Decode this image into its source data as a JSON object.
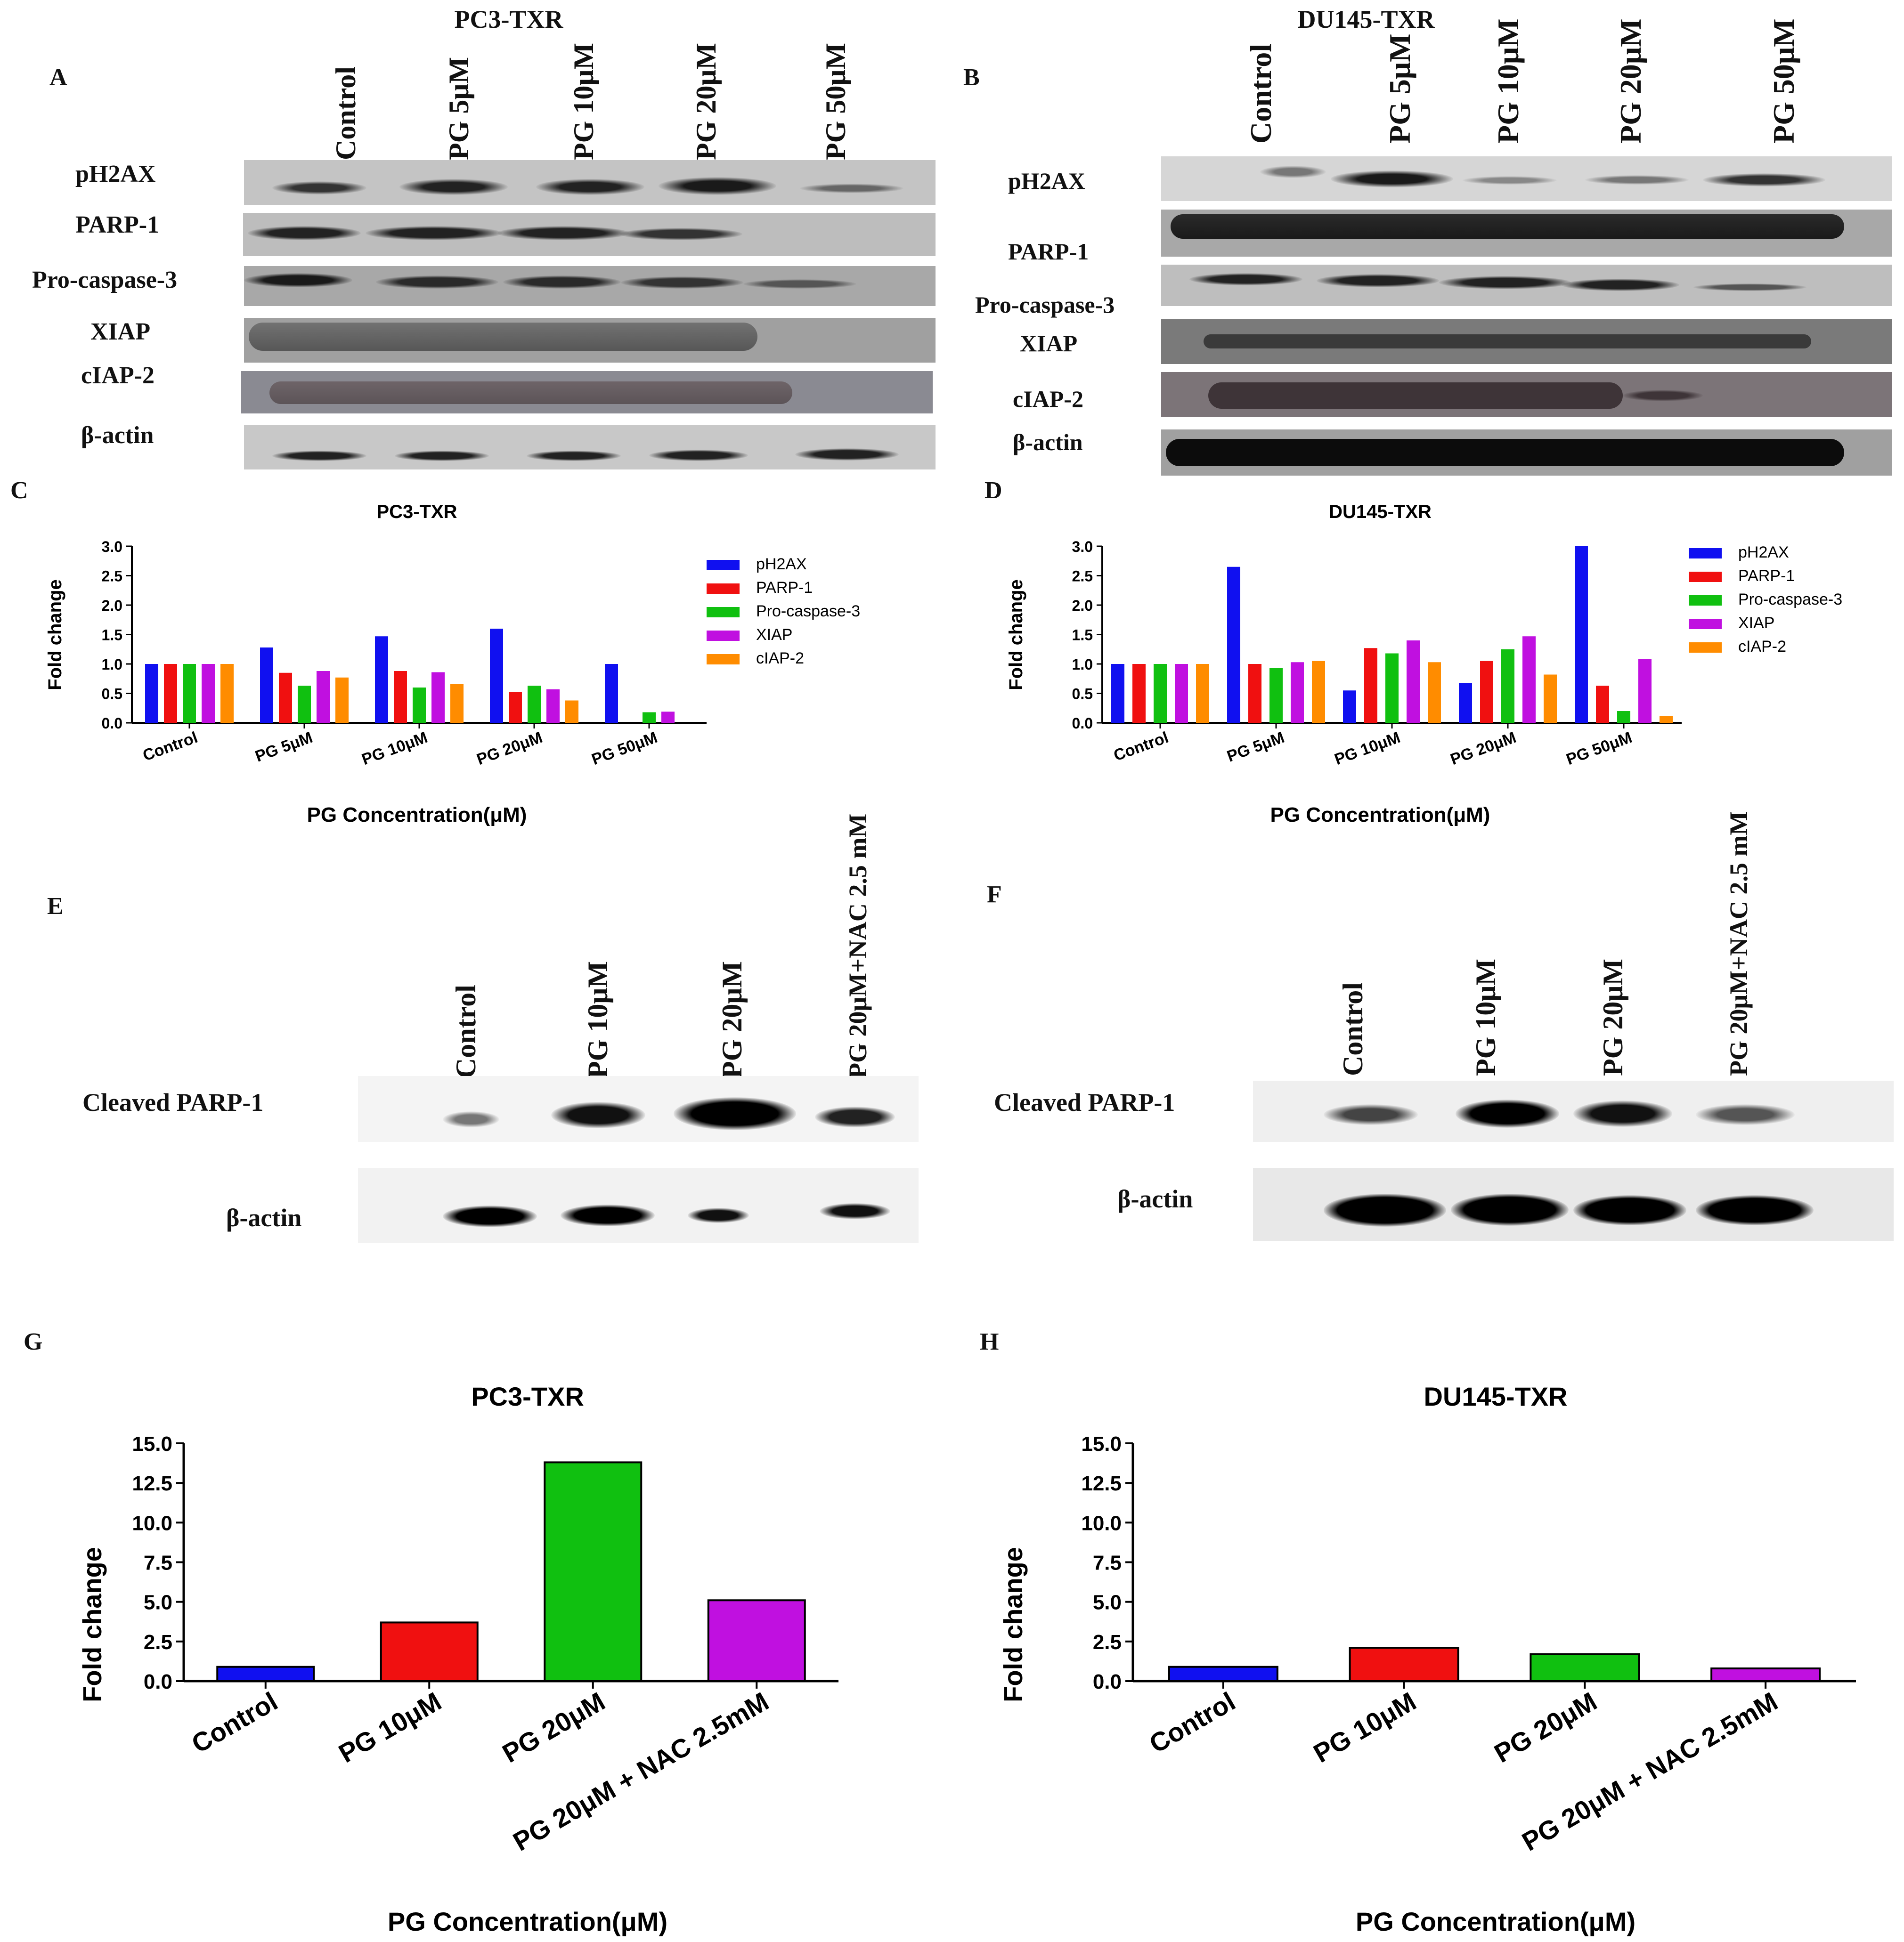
{
  "panels": {
    "A": {
      "letter": "A",
      "title": "PC3-TXR",
      "lanes": [
        "Control",
        "PG 5μM",
        "PG 10μM",
        "PG 20μM",
        "PG 50μM"
      ],
      "rows": [
        "pH2AX",
        "PARP-1",
        "Pro-caspase-3",
        "XIAP",
        "cIAP-2",
        "β-actin"
      ]
    },
    "B": {
      "letter": "B",
      "title": "DU145-TXR",
      "lanes": [
        "Control",
        "PG 5μM",
        "PG 10μM",
        "PG 20μM",
        "PG 50μM"
      ],
      "rows": [
        "pH2AX",
        "PARP-1",
        "Pro-caspase-3",
        "XIAP",
        "cIAP-2",
        "β-actin"
      ]
    },
    "C": {
      "letter": "C"
    },
    "D": {
      "letter": "D"
    },
    "E": {
      "letter": "E",
      "lanes": [
        "Control",
        "PG 10μM",
        "PG 20μM",
        "PG 20μM+NAC 2.5 mM"
      ],
      "rows": [
        "Cleaved PARP-1",
        "β-actin"
      ]
    },
    "F": {
      "letter": "F",
      "lanes": [
        "Control",
        "PG 10μM",
        "PG 20μM",
        "PG 20μM+NAC 2.5 mM"
      ],
      "rows": [
        "Cleaved PARP-1",
        "β-actin"
      ]
    },
    "G": {
      "letter": "G"
    },
    "H": {
      "letter": "H"
    }
  },
  "colors": {
    "pH2AX": "#1010f0",
    "PARP-1": "#f01010",
    "Pro-caspase-3": "#10c010",
    "XIAP": "#c010e0",
    "cIAP-2": "#ff8c00"
  },
  "chart_data": [
    {
      "id": "C",
      "type": "bar",
      "title": "PC3-TXR",
      "xlabel": "PG Concentration(μM)",
      "ylabel": "Fold change",
      "categories": [
        "Control",
        "PG 5μM",
        "PG 10μM",
        "PG 20μM",
        "PG 50μM"
      ],
      "ylim": [
        0,
        3.0
      ],
      "yticks": [
        "0.0",
        "0.5",
        "1.0",
        "1.5",
        "2.0",
        "2.5",
        "3.0"
      ],
      "series": [
        {
          "name": "pH2AX",
          "values": [
            1.0,
            1.28,
            1.47,
            1.6,
            1.0
          ]
        },
        {
          "name": "PARP-1",
          "values": [
            1.0,
            0.85,
            0.88,
            0.52,
            0.0
          ]
        },
        {
          "name": "Pro-caspase-3",
          "values": [
            1.0,
            0.63,
            0.6,
            0.63,
            0.18
          ]
        },
        {
          "name": "XIAP",
          "values": [
            1.0,
            0.88,
            0.86,
            0.57,
            0.19
          ]
        },
        {
          "name": "cIAP-2",
          "values": [
            1.0,
            0.77,
            0.66,
            0.38,
            0.0
          ]
        }
      ]
    },
    {
      "id": "D",
      "type": "bar",
      "title": "DU145-TXR",
      "xlabel": "PG Concentration(μM)",
      "ylabel": "Fold change",
      "categories": [
        "Control",
        "PG 5μM",
        "PG 10μM",
        "PG 20μM",
        "PG 50μM"
      ],
      "ylim": [
        0,
        3.0
      ],
      "yticks": [
        "0.0",
        "0.5",
        "1.0",
        "1.5",
        "2.0",
        "2.5",
        "3.0"
      ],
      "series": [
        {
          "name": "pH2AX",
          "values": [
            1.0,
            2.65,
            0.55,
            0.68,
            3.0
          ]
        },
        {
          "name": "PARP-1",
          "values": [
            1.0,
            1.0,
            1.27,
            1.05,
            0.63
          ]
        },
        {
          "name": "Pro-caspase-3",
          "values": [
            1.0,
            0.93,
            1.18,
            1.25,
            0.2
          ]
        },
        {
          "name": "XIAP",
          "values": [
            1.0,
            1.03,
            1.4,
            1.47,
            1.08
          ]
        },
        {
          "name": "cIAP-2",
          "values": [
            1.0,
            1.05,
            1.03,
            0.82,
            0.12
          ]
        }
      ]
    },
    {
      "id": "G",
      "type": "bar",
      "title": "PC3-TXR",
      "xlabel": "PG Concentration(μM)",
      "ylabel": "Fold change",
      "categories": [
        "Control",
        "PG 10μM",
        "PG 20μM",
        "PG 20μM + NAC 2.5mM"
      ],
      "values": [
        0.9,
        3.7,
        13.8,
        5.1
      ],
      "barColors": [
        "#1010f0",
        "#f01010",
        "#10c010",
        "#c010e0"
      ],
      "ylim": [
        0,
        15
      ],
      "yticks": [
        "0.0",
        "2.5",
        "5.0",
        "7.5",
        "10.0",
        "12.5",
        "15.0"
      ]
    },
    {
      "id": "H",
      "type": "bar",
      "title": "DU145-TXR",
      "xlabel": "PG Concentration(μM)",
      "ylabel": "Fold change",
      "categories": [
        "Control",
        "PG 10μM",
        "PG 20μM",
        "PG 20μM + NAC 2.5mM"
      ],
      "values": [
        0.9,
        2.1,
        1.7,
        0.8
      ],
      "barColors": [
        "#1010f0",
        "#f01010",
        "#10c010",
        "#c010e0"
      ],
      "ylim": [
        0,
        15
      ],
      "yticks": [
        "0.0",
        "2.5",
        "5.0",
        "7.5",
        "10.0",
        "12.5",
        "15.0"
      ]
    }
  ]
}
